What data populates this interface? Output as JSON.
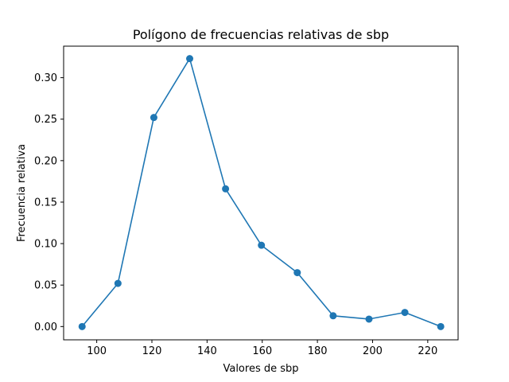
{
  "chart_data": {
    "type": "line",
    "title": "Polígono de frecuencias relativas de sbp",
    "xlabel": "Valores de sbp",
    "ylabel": "Frecuencia relativa",
    "xlim": [
      88,
      231
    ],
    "ylim": [
      -0.016,
      0.338
    ],
    "xticks": [
      100,
      120,
      140,
      160,
      180,
      200,
      220
    ],
    "yticks": [
      0.0,
      0.05,
      0.1,
      0.15,
      0.2,
      0.25,
      0.3
    ],
    "ytick_labels": [
      "0.00",
      "0.05",
      "0.10",
      "0.15",
      "0.20",
      "0.25",
      "0.30"
    ],
    "grid": false,
    "series": [
      {
        "color": "#1f77b4",
        "marker": "circle",
        "x": [
          94.7,
          107.7,
          120.7,
          133.7,
          146.7,
          159.7,
          172.7,
          185.7,
          198.7,
          211.7,
          224.7
        ],
        "y": [
          0.0,
          0.052,
          0.252,
          0.323,
          0.166,
          0.098,
          0.065,
          0.013,
          0.009,
          0.017,
          0.0
        ]
      }
    ]
  }
}
